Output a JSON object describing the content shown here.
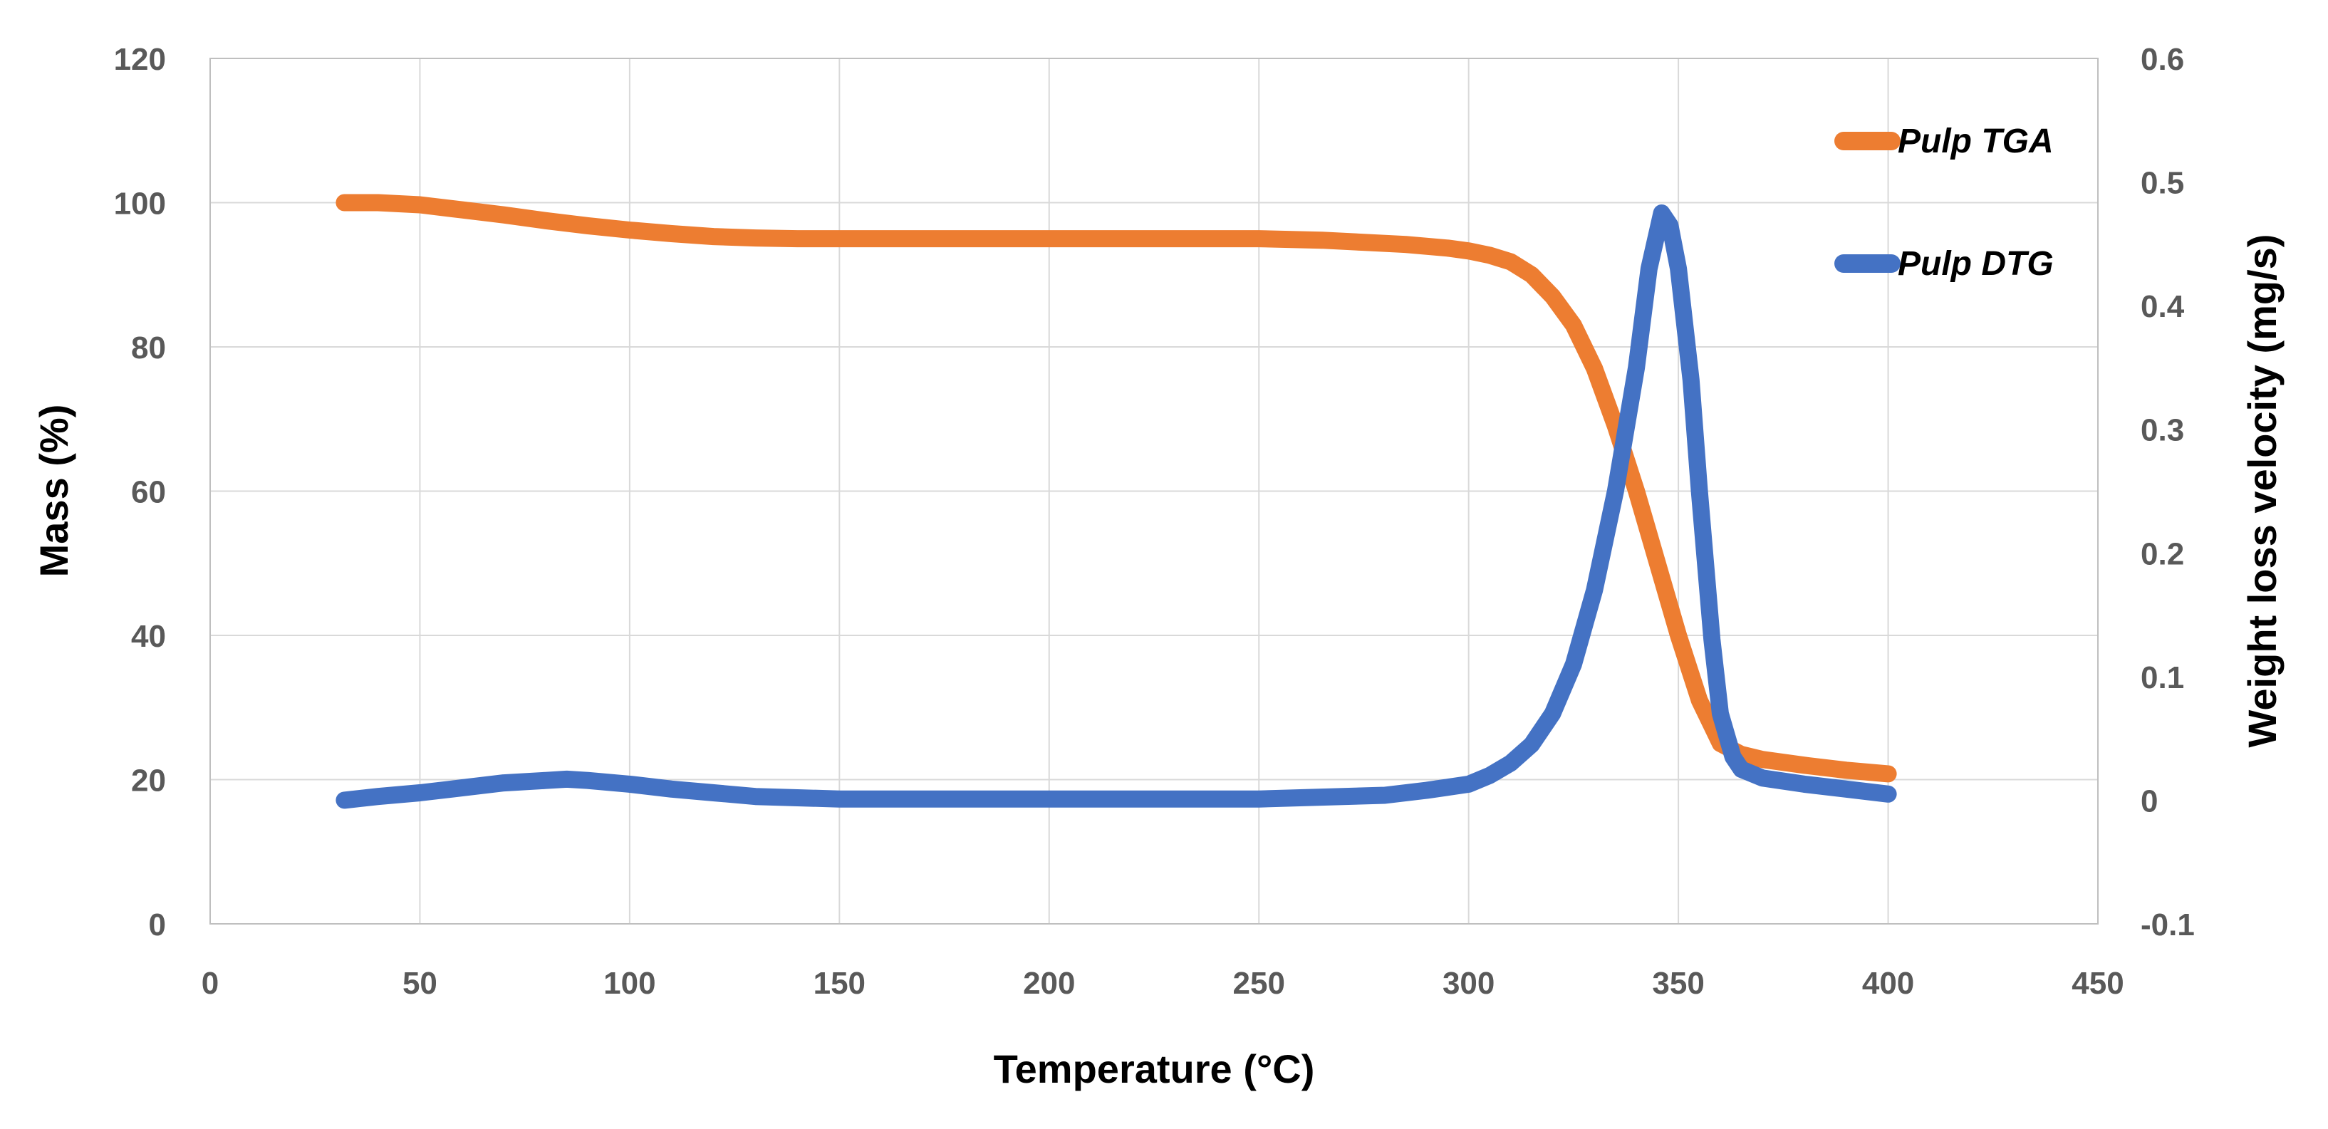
{
  "chart_data": {
    "type": "line",
    "title": "",
    "xlabel": "Temperature (°C)",
    "ylabel": "Mass (%)",
    "y2label": "Weight loss velocity (mg/s)",
    "xlim": [
      0,
      450
    ],
    "ylim": [
      0,
      120
    ],
    "y2lim": [
      -0.1,
      0.6
    ],
    "x_ticks": [
      0,
      50,
      100,
      150,
      200,
      250,
      300,
      350,
      400,
      450
    ],
    "y_ticks": [
      0,
      20,
      40,
      60,
      80,
      100,
      120
    ],
    "y2_ticks": [
      "-0.1",
      "0",
      "0.1",
      "0.2",
      "0.3",
      "0.4",
      "0.5",
      "0.6"
    ],
    "grid": true,
    "legend_position": "top-right",
    "series": [
      {
        "name": "Pulp TGA",
        "axis": "left",
        "color": "#ed7d31",
        "x": [
          32,
          40,
          50,
          60,
          70,
          80,
          90,
          100,
          110,
          120,
          130,
          140,
          150,
          175,
          200,
          225,
          250,
          265,
          275,
          285,
          295,
          300,
          305,
          310,
          315,
          320,
          325,
          330,
          335,
          340,
          345,
          350,
          355,
          360,
          365,
          370,
          380,
          390,
          400
        ],
        "values": [
          100,
          100,
          99.7,
          99,
          98.3,
          97.5,
          96.8,
          96.2,
          95.7,
          95.3,
          95.1,
          95,
          95,
          95,
          95,
          95,
          95,
          94.8,
          94.5,
          94.2,
          93.7,
          93.3,
          92.7,
          91.8,
          90,
          87,
          83,
          77,
          69,
          60,
          50,
          40,
          31,
          25,
          23.5,
          22.8,
          22,
          21.3,
          20.8
        ]
      },
      {
        "name": "Pulp DTG",
        "axis": "right",
        "color": "#4472c4",
        "x": [
          32,
          40,
          50,
          60,
          70,
          80,
          85,
          90,
          100,
          110,
          120,
          130,
          140,
          150,
          200,
          250,
          280,
          290,
          300,
          305,
          310,
          315,
          320,
          325,
          330,
          335,
          340,
          343,
          346,
          348,
          350,
          353,
          355,
          358,
          360,
          363,
          365,
          370,
          380,
          390,
          400
        ],
        "values": [
          0,
          0.003,
          0.006,
          0.01,
          0.014,
          0.016,
          0.017,
          0.016,
          0.013,
          0.009,
          0.006,
          0.003,
          0.002,
          0.001,
          0.001,
          0.001,
          0.004,
          0.008,
          0.013,
          0.02,
          0.03,
          0.045,
          0.07,
          0.11,
          0.17,
          0.25,
          0.35,
          0.43,
          0.475,
          0.465,
          0.43,
          0.34,
          0.25,
          0.13,
          0.07,
          0.035,
          0.025,
          0.018,
          0.013,
          0.009,
          0.005
        ]
      }
    ]
  }
}
